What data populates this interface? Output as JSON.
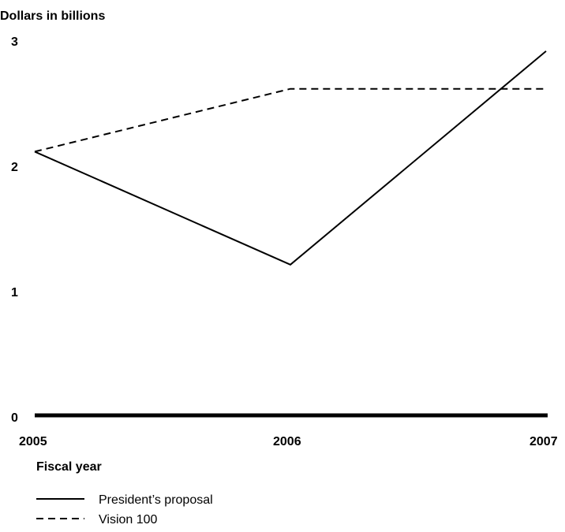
{
  "chart_data": {
    "type": "line",
    "ylabel": "Dollars in billions",
    "xlabel": "Fiscal year",
    "categories": [
      "2005",
      "2006",
      "2007"
    ],
    "yticks": [
      "0",
      "1",
      "2",
      "3"
    ],
    "ylim": [
      0,
      3
    ],
    "grid": false,
    "legend_position": "bottom-left",
    "series": [
      {
        "name": "President’s proposal",
        "style": "solid",
        "color": "#000000",
        "values": [
          2.1,
          1.2,
          2.9
        ]
      },
      {
        "name": "Vision 100",
        "style": "dashed",
        "color": "#000000",
        "values": [
          2.1,
          2.6,
          2.6
        ]
      }
    ]
  }
}
